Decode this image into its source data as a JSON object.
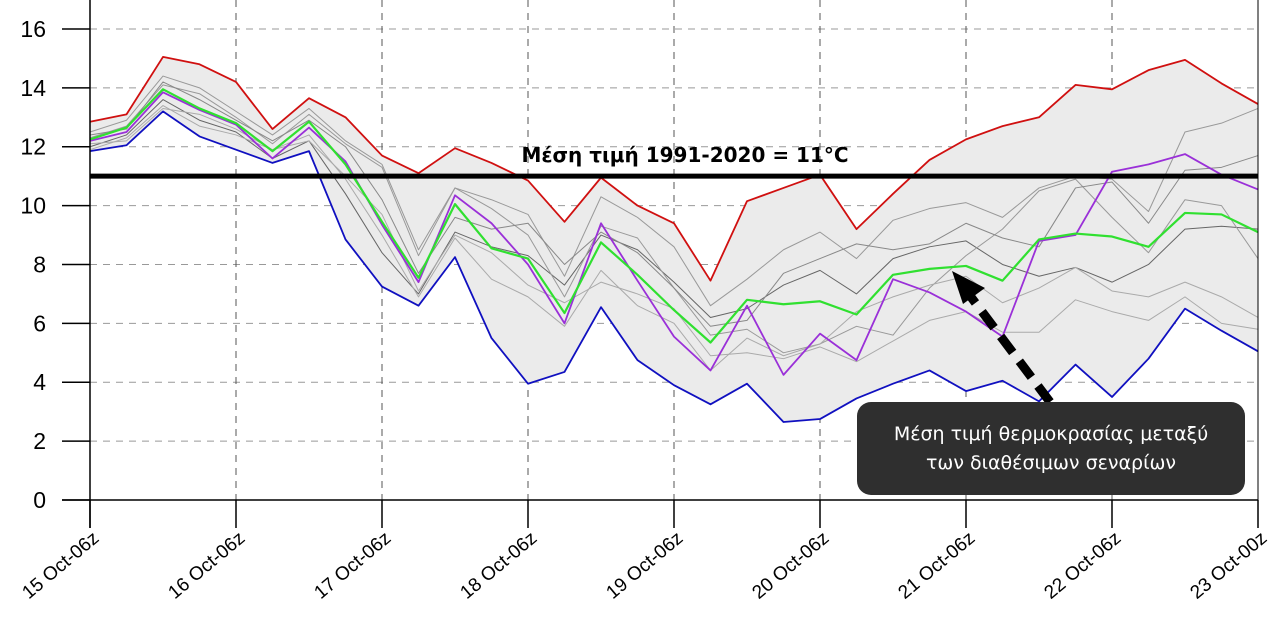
{
  "chart_data": {
    "type": "line",
    "title": "",
    "xlabel": "",
    "ylabel": "",
    "ylim": [
      0,
      17
    ],
    "yticks": [
      0,
      2,
      4,
      6,
      8,
      10,
      12,
      14,
      16
    ],
    "xtick_labels": [
      "15 Oct-06z",
      "16 Oct-06z",
      "17 Oct-06z",
      "18 Oct-06z",
      "19 Oct-06z",
      "20 Oct-06z",
      "21 Oct-06z",
      "22 Oct-06z",
      "23 Oct-00z"
    ],
    "points_per_tick": 4,
    "grid": true,
    "envelope_fill": "#ebebeb",
    "reference_line": {
      "value": 11,
      "label": "Μέση τιμή 1991-2020 = 11°C",
      "color": "#000000"
    },
    "annotation": {
      "line1": "Μέση τιμή θερμοκρασίας μεταξύ",
      "line2": "των διαθέσιμων σεναρίων",
      "background": "#2f2f2f"
    },
    "series": [
      {
        "role": "max",
        "color": "#d01010",
        "values": [
          12.85,
          13.1,
          15.05,
          14.8,
          14.2,
          12.6,
          13.65,
          13.0,
          11.7,
          11.1,
          11.95,
          11.45,
          10.85,
          9.45,
          10.95,
          10.0,
          9.4,
          7.45,
          10.15,
          10.6,
          11.05,
          9.2,
          10.4,
          11.55,
          12.25,
          12.7,
          13.0,
          14.1,
          13.95,
          14.6,
          14.95,
          14.15,
          13.45
        ]
      },
      {
        "role": "min",
        "color": "#1010c0",
        "values": [
          11.85,
          12.05,
          13.2,
          12.35,
          11.9,
          11.45,
          11.85,
          8.85,
          7.25,
          6.6,
          8.25,
          5.5,
          3.95,
          4.35,
          6.55,
          4.75,
          3.9,
          3.25,
          3.95,
          2.65,
          2.75,
          3.45,
          3.95,
          4.4,
          3.7,
          4.05,
          3.35,
          4.6,
          3.5,
          4.8,
          6.5,
          5.75,
          5.05
        ]
      },
      {
        "role": "member",
        "color": "#999999",
        "values": [
          12.5,
          12.9,
          14.4,
          14.0,
          13.2,
          12.4,
          13.3,
          12.2,
          11.4,
          8.5,
          10.6,
          10.2,
          9.7,
          7.6,
          10.3,
          9.6,
          8.6,
          6.6,
          7.5,
          8.5,
          9.1,
          8.2,
          9.5,
          9.9,
          10.1,
          9.6,
          10.6,
          11.0,
          10.9,
          9.8,
          12.5,
          12.8,
          13.3
        ]
      },
      {
        "role": "member",
        "color": "#666666",
        "values": [
          12.0,
          12.4,
          13.6,
          12.9,
          12.5,
          11.6,
          12.2,
          10.4,
          8.4,
          7.0,
          9.1,
          8.6,
          8.3,
          7.3,
          9.0,
          8.5,
          7.4,
          6.2,
          6.5,
          7.3,
          7.8,
          7.0,
          8.2,
          8.6,
          8.8,
          8.0,
          7.6,
          7.9,
          7.4,
          8.0,
          9.2,
          9.3,
          9.2
        ]
      },
      {
        "role": "member",
        "color": "#999999",
        "values": [
          12.3,
          12.7,
          14.1,
          13.8,
          13.0,
          12.1,
          13.1,
          12.1,
          11.3,
          8.3,
          10.6,
          9.9,
          9.0,
          6.9,
          9.3,
          8.9,
          7.2,
          5.6,
          5.8,
          5.0,
          5.3,
          5.9,
          5.6,
          7.2,
          8.3,
          9.2,
          10.5,
          10.9,
          9.6,
          8.4,
          10.2,
          10.0,
          8.2
        ]
      },
      {
        "role": "member",
        "color": "#aaaaaa",
        "values": [
          11.9,
          12.3,
          13.4,
          12.7,
          12.4,
          11.9,
          12.4,
          10.9,
          9.0,
          6.9,
          8.9,
          7.5,
          6.9,
          5.9,
          7.8,
          6.6,
          6.0,
          4.4,
          5.5,
          4.9,
          5.3,
          6.4,
          6.9,
          7.3,
          7.6,
          6.7,
          7.2,
          7.9,
          7.1,
          6.9,
          7.4,
          6.9,
          6.2
        ]
      },
      {
        "role": "member",
        "color": "#888888",
        "values": [
          12.4,
          12.6,
          14.2,
          13.6,
          12.9,
          12.2,
          12.9,
          12.0,
          10.2,
          7.7,
          9.6,
          9.2,
          9.4,
          8.0,
          9.1,
          8.4,
          7.2,
          5.9,
          6.1,
          7.7,
          8.2,
          8.7,
          8.5,
          8.7,
          9.4,
          8.9,
          8.6,
          10.6,
          10.8,
          9.4,
          11.2,
          11.3,
          11.7
        ]
      },
      {
        "role": "member",
        "color": "#aaaaaa",
        "values": [
          12.1,
          12.2,
          13.3,
          13.1,
          12.6,
          11.9,
          12.2,
          11.0,
          9.7,
          7.1,
          9.0,
          8.4,
          7.3,
          6.7,
          7.4,
          7.0,
          6.5,
          4.9,
          5.0,
          4.8,
          5.2,
          4.7,
          5.4,
          6.1,
          6.4,
          5.7,
          5.7,
          6.8,
          6.4,
          6.1,
          6.9,
          6.0,
          5.8
        ]
      },
      {
        "role": "member-highlight",
        "color": "#9a30d8",
        "values": [
          12.2,
          12.5,
          13.85,
          13.25,
          12.75,
          11.6,
          12.65,
          11.5,
          9.35,
          7.4,
          10.35,
          9.4,
          8.0,
          6.0,
          9.4,
          7.45,
          5.55,
          4.4,
          6.6,
          4.25,
          5.65,
          4.75,
          7.5,
          7.05,
          6.4,
          5.55,
          8.8,
          9.0,
          11.15,
          11.4,
          11.75,
          11.05,
          10.55
        ]
      },
      {
        "role": "ensemble-mean",
        "color": "#30e030",
        "values": [
          12.25,
          12.65,
          13.95,
          13.3,
          12.8,
          11.85,
          12.85,
          11.4,
          9.45,
          7.55,
          10.05,
          8.55,
          8.2,
          6.35,
          8.75,
          7.65,
          6.45,
          5.35,
          6.8,
          6.65,
          6.75,
          6.3,
          7.65,
          7.85,
          7.95,
          7.45,
          8.85,
          9.05,
          8.95,
          8.6,
          9.75,
          9.7,
          9.1
        ]
      }
    ]
  }
}
